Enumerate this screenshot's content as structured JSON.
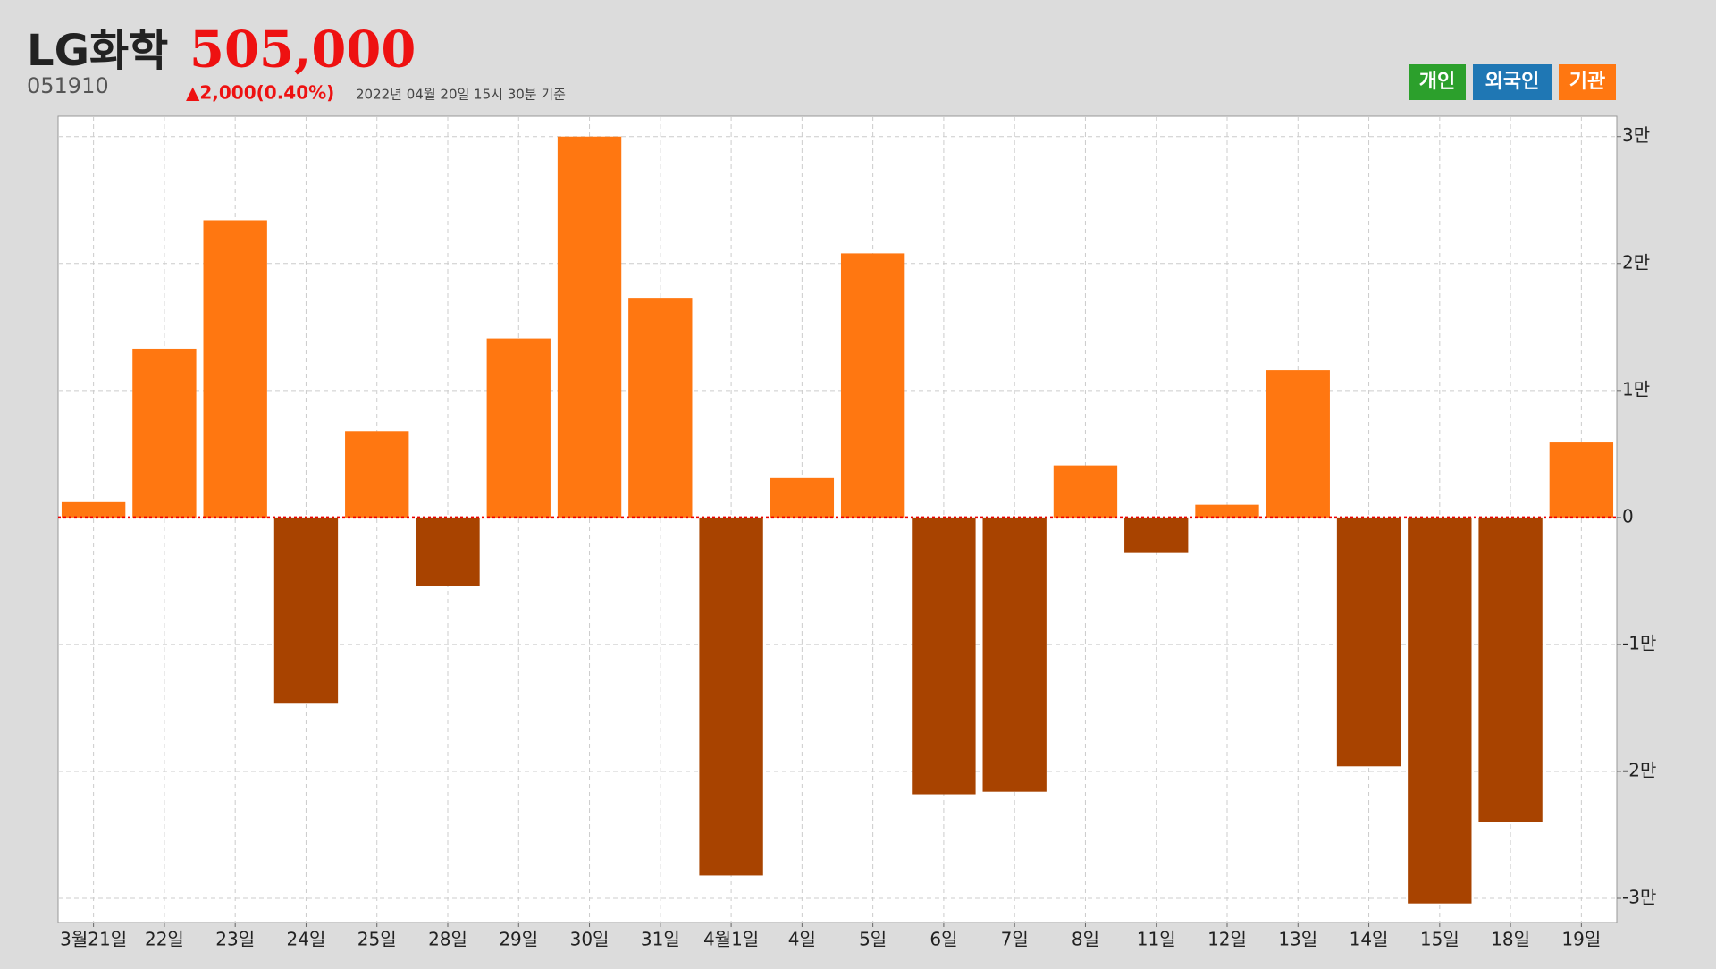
{
  "chart_data": {
    "type": "bar",
    "title": "LG화학",
    "price": "505,000",
    "code": "051910",
    "change": "▲2,000(0.40%)",
    "timestamp": "2022년 04월 20일 15시 30분 기준",
    "buttons": [
      {
        "label": "개인",
        "color": "#2ca02c"
      },
      {
        "label": "외국인",
        "color": "#1f77b4"
      }
    ],
    "categories": [
      "3월21일",
      "22일",
      "23일",
      "24일",
      "25일",
      "28일",
      "29일",
      "30일",
      "31일",
      "4월1일",
      "4일",
      "5일",
      "6일",
      "7일",
      "8일",
      "11일",
      "12일",
      "13일",
      "14일",
      "15일",
      "18일",
      "19일"
    ],
    "series": [
      {
        "name": "기관",
        "color": "#ff7711",
        "negative_color": "#a84300",
        "values": [
          1200,
          13300,
          23400,
          -14600,
          6800,
          -5400,
          14100,
          30000,
          17300,
          -28200,
          3100,
          20800,
          -21800,
          -21600,
          4100,
          -2800,
          1000,
          11600,
          -19600,
          -30400,
          -24000,
          5900
        ]
      }
    ],
    "ylim": [
      -31900,
      31600
    ],
    "yticks": [
      {
        "value": -30000,
        "label": "-3만"
      },
      {
        "value": -20000,
        "label": "-2만"
      },
      {
        "value": -10000,
        "label": "-1만"
      },
      0,
      {
        "value": 10000,
        "label": "1만"
      },
      {
        "value": 20000,
        "label": "2만"
      },
      {
        "value": 30000,
        "label": "3만"
      }
    ],
    "grid": true
  }
}
